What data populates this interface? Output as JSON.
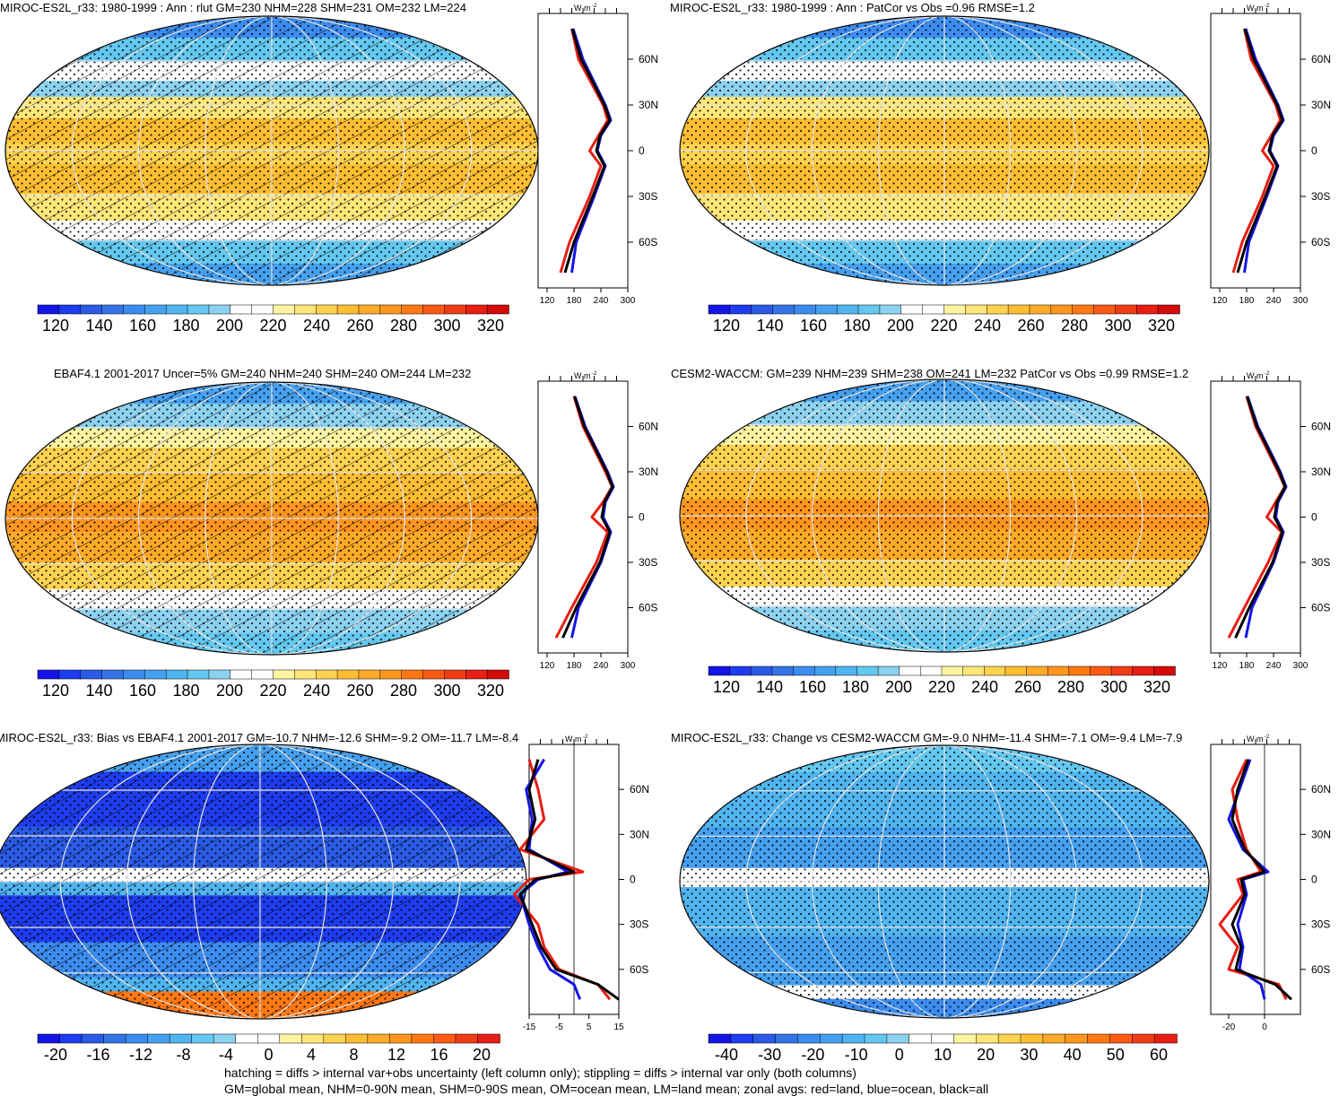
{
  "panels": [
    {
      "title": "MIROC-ES2L_r33: 1980-1999 : Ann : rlut GM=230 NHM=228 SHM=231 OM=232 LM=224",
      "map": "mean",
      "hatch": true
    },
    {
      "title": "MIROC-ES2L_r33: 1980-1999 : Ann : PatCor vs Obs =0.96 RMSE=1.2",
      "map": "mean",
      "hatch": false
    },
    {
      "title": "EBAF4.1 2001-2017 Uncer=5% GM=240 NHM=240 SHM=240 OM=244 LM=232",
      "map": "obs",
      "hatch": true
    },
    {
      "title": "CESM2-WACCM: GM=239 NHM=239 SHM=238 OM=241 LM=232 PatCor vs Obs =0.99 RMSE=1.2",
      "map": "obs",
      "hatch": false
    },
    {
      "title": "MIROC-ES2L_r33: Bias vs EBAF4.1 2001-2017 GM=-10.7 NHM=-12.6 SHM=-9.2 OM=-11.7 LM=-8.4",
      "map": "bias",
      "hatch": true
    },
    {
      "title": "MIROC-ES2L_r33: Change vs CESM2-WACCM GM=-9.0 NHM=-11.4 SHM=-7.1 OM=-9.4 LM=-7.9",
      "map": "change",
      "hatch": false
    }
  ],
  "colorbars": {
    "abs": {
      "labels": [
        "120",
        "140",
        "160",
        "180",
        "200",
        "220",
        "240",
        "260",
        "280",
        "300",
        "320"
      ],
      "colors": [
        "#1414e6",
        "#1e3cf0",
        "#2a5ae6",
        "#3474e6",
        "#3c8cf0",
        "#46a0f0",
        "#50b4f0",
        "#64c8f0",
        "#8cd2f0",
        "#ffffff",
        "#ffffff",
        "#fff5a0",
        "#ffe678",
        "#ffd250",
        "#ffbe32",
        "#ffaa28",
        "#ff961e",
        "#ff7814",
        "#ff5a14",
        "#f03c14",
        "#e61e14",
        "#d20a0a"
      ]
    },
    "bias": {
      "labels": [
        "-20",
        "-16",
        "-12",
        "-8",
        "-4",
        "0",
        "4",
        "8",
        "12",
        "16",
        "20"
      ],
      "colors": [
        "#1414e6",
        "#1e3cf0",
        "#2a5ae6",
        "#3474e6",
        "#3c8cf0",
        "#46a0f0",
        "#50b4f0",
        "#64c8f0",
        "#8cd2f0",
        "#ffffff",
        "#ffffff",
        "#fff5a0",
        "#ffe678",
        "#ffd250",
        "#ffbe32",
        "#ffaa28",
        "#ff961e",
        "#ff7814",
        "#ff5a14",
        "#f03c14",
        "#e61e14"
      ]
    },
    "change": {
      "labels": [
        "-40",
        "-30",
        "-20",
        "-10",
        "0",
        "10",
        "20",
        "30",
        "40",
        "50",
        "60"
      ],
      "colors": [
        "#1414e6",
        "#1e3cf0",
        "#2a5ae6",
        "#3474e6",
        "#3c8cf0",
        "#46a0f0",
        "#50b4f0",
        "#64c8f0",
        "#8cd2f0",
        "#ffffff",
        "#ffffff",
        "#fff5a0",
        "#ffe678",
        "#ffd250",
        "#ffbe32",
        "#ffaa28",
        "#ff961e",
        "#ff7814",
        "#ff5a14",
        "#f03c14",
        "#e61e14"
      ]
    }
  },
  "zonal_axes": {
    "unit": "W m",
    "unit_sup": "-2",
    "lat_labels": [
      "60N",
      "30N",
      "0",
      "30S",
      "60S"
    ],
    "abs_x_labels": [
      "120",
      "180",
      "240",
      "300"
    ],
    "bias_x_labels": [
      "-15",
      "-5",
      "5",
      "15"
    ],
    "change_x_labels": [
      "-20",
      "0"
    ]
  },
  "footer": {
    "line1": "hatching = diffs > internal var+obs uncertainty (left column only); stippling = diffs > internal var only (both columns)",
    "line2": "GM=global mean, NHM=0-90N mean, SHM=0-90S mean, OM=ocean mean, LM=land mean; zonal avgs: red=land, blue=ocean, black=all"
  },
  "chart_data": [
    {
      "type": "line",
      "title": "MIROC-ES2L_r33: 1980-1999 : Ann : rlut GM=230 NHM=228 SHM=231 OM=232 LM=224",
      "xlabel": "",
      "ylabel": "",
      "xlim": [
        100,
        300
      ],
      "ylim": [
        -90,
        90
      ],
      "series": [
        {
          "color": "#e61e14",
          "lat": [
            -80,
            -60,
            -30,
            -10,
            0,
            10,
            20,
            30,
            60,
            80
          ],
          "values": [
            150,
            170,
            215,
            240,
            215,
            235,
            255,
            245,
            190,
            175
          ]
        },
        {
          "color": "#1414e6",
          "lat": [
            -80,
            -60,
            -30,
            -10,
            0,
            10,
            20,
            30,
            60,
            80
          ],
          "values": [
            175,
            185,
            225,
            250,
            232,
            240,
            262,
            250,
            200,
            178
          ]
        },
        {
          "color": "#000000",
          "lat": [
            -80,
            -60,
            -30,
            -10,
            0,
            10,
            20,
            30,
            60,
            80
          ],
          "values": [
            160,
            180,
            222,
            248,
            230,
            238,
            260,
            248,
            196,
            176
          ]
        }
      ]
    },
    {
      "type": "line",
      "title": "MIROC-ES2L_r33: 1980-1999 : Ann : PatCor vs Obs =0.96 RMSE=1.2",
      "xlabel": "",
      "ylabel": "",
      "xlim": [
        100,
        300
      ],
      "ylim": [
        -90,
        90
      ],
      "series": [
        {
          "color": "#e61e14",
          "lat": [
            -80,
            -60,
            -30,
            -10,
            0,
            10,
            20,
            30,
            60,
            80
          ],
          "values": [
            150,
            170,
            215,
            240,
            215,
            235,
            255,
            245,
            190,
            175
          ]
        },
        {
          "color": "#1414e6",
          "lat": [
            -80,
            -60,
            -30,
            -10,
            0,
            10,
            20,
            30,
            60,
            80
          ],
          "values": [
            175,
            185,
            225,
            250,
            232,
            240,
            262,
            250,
            200,
            178
          ]
        },
        {
          "color": "#000000",
          "lat": [
            -80,
            -60,
            -30,
            -10,
            0,
            10,
            20,
            30,
            60,
            80
          ],
          "values": [
            160,
            180,
            222,
            248,
            230,
            238,
            260,
            248,
            196,
            176
          ]
        }
      ]
    },
    {
      "type": "line",
      "title": "EBAF4.1 2001-2017 Uncer=5% GM=240 NHM=240 SHM=240 OM=244 LM=232",
      "xlabel": "",
      "ylabel": "",
      "xlim": [
        100,
        300
      ],
      "ylim": [
        -90,
        90
      ],
      "series": [
        {
          "color": "#e61e14",
          "lat": [
            -80,
            -60,
            -30,
            -10,
            0,
            10,
            20,
            30,
            60,
            80
          ],
          "values": [
            140,
            175,
            230,
            255,
            220,
            245,
            265,
            250,
            200,
            180
          ]
        },
        {
          "color": "#1414e6",
          "lat": [
            -80,
            -60,
            -30,
            -10,
            0,
            10,
            20,
            30,
            60,
            80
          ],
          "values": [
            175,
            190,
            240,
            262,
            245,
            250,
            268,
            255,
            205,
            182
          ]
        },
        {
          "color": "#000000",
          "lat": [
            -80,
            -60,
            -30,
            -10,
            0,
            10,
            20,
            30,
            60,
            80
          ],
          "values": [
            155,
            185,
            238,
            260,
            242,
            248,
            266,
            253,
            203,
            181
          ]
        }
      ]
    },
    {
      "type": "line",
      "title": "CESM2-WACCM: GM=239 NHM=239 SHM=238 OM=241 LM=232 PatCor vs Obs =0.99 RMSE=1.2",
      "xlabel": "",
      "ylabel": "",
      "xlim": [
        100,
        300
      ],
      "ylim": [
        -90,
        90
      ],
      "series": [
        {
          "color": "#e61e14",
          "lat": [
            -80,
            -60,
            -30,
            -10,
            0,
            10,
            20,
            30,
            60,
            80
          ],
          "values": [
            140,
            175,
            228,
            258,
            225,
            245,
            265,
            250,
            200,
            180
          ]
        },
        {
          "color": "#1414e6",
          "lat": [
            -80,
            -60,
            -30,
            -10,
            0,
            10,
            20,
            30,
            60,
            80
          ],
          "values": [
            178,
            192,
            240,
            262,
            245,
            250,
            268,
            255,
            205,
            182
          ]
        },
        {
          "color": "#000000",
          "lat": [
            -80,
            -60,
            -30,
            -10,
            0,
            10,
            20,
            30,
            60,
            80
          ],
          "values": [
            155,
            186,
            238,
            260,
            242,
            248,
            266,
            253,
            203,
            181
          ]
        }
      ]
    },
    {
      "type": "line",
      "title": "MIROC-ES2L_r33: Bias vs EBAF4.1 2001-2017 GM=-10.7 NHM=-12.6 SHM=-9.2 OM=-11.7 LM=-8.4",
      "xlabel": "",
      "ylabel": "",
      "xlim": [
        -15,
        15
      ],
      "ylim": [
        -90,
        90
      ],
      "series": [
        {
          "color": "#e61e14",
          "lat": [
            -80,
            -70,
            -60,
            -45,
            -30,
            -10,
            0,
            5,
            20,
            40,
            60,
            80
          ],
          "values": [
            12,
            8,
            -5,
            -10,
            -12,
            -20,
            -15,
            3,
            -18,
            -10,
            -12,
            -15
          ]
        },
        {
          "color": "#1414e6",
          "lat": [
            -80,
            -70,
            -60,
            -45,
            -30,
            -10,
            0,
            5,
            20,
            40,
            60,
            80
          ],
          "values": [
            2,
            0,
            -8,
            -12,
            -15,
            -18,
            -12,
            -2,
            -15,
            -14,
            -16,
            -10
          ]
        },
        {
          "color": "#000000",
          "lat": [
            -80,
            -70,
            -60,
            -45,
            -30,
            -10,
            0,
            5,
            20,
            40,
            60,
            80
          ],
          "values": [
            15,
            8,
            -6,
            -11,
            -14,
            -18,
            -13,
            0,
            -16,
            -13,
            -15,
            -12
          ]
        }
      ]
    },
    {
      "type": "line",
      "title": "MIROC-ES2L_r33: Change vs CESM2-WACCM GM=-9.0 NHM=-11.4 SHM=-7.1 OM=-9.4 LM=-7.9",
      "xlabel": "",
      "ylabel": "",
      "xlim": [
        -30,
        20
      ],
      "ylim": [
        -90,
        90
      ],
      "series": [
        {
          "color": "#e61e14",
          "lat": [
            -80,
            -70,
            -60,
            -45,
            -30,
            -10,
            0,
            5,
            20,
            40,
            60,
            80
          ],
          "values": [
            12,
            8,
            -20,
            -15,
            -25,
            -12,
            -15,
            -2,
            -10,
            -15,
            -18,
            -10
          ]
        },
        {
          "color": "#1414e6",
          "lat": [
            -80,
            -70,
            -60,
            -45,
            -30,
            -10,
            0,
            5,
            20,
            40,
            60,
            80
          ],
          "values": [
            0,
            -2,
            -14,
            -12,
            -15,
            -10,
            -12,
            2,
            -12,
            -20,
            -14,
            -8
          ]
        },
        {
          "color": "#000000",
          "lat": [
            -80,
            -70,
            -60,
            -45,
            -30,
            -10,
            0,
            5,
            20,
            40,
            60,
            80
          ],
          "values": [
            15,
            6,
            -16,
            -13,
            -18,
            -11,
            -13,
            0,
            -11,
            -18,
            -15,
            -9
          ]
        }
      ]
    }
  ]
}
